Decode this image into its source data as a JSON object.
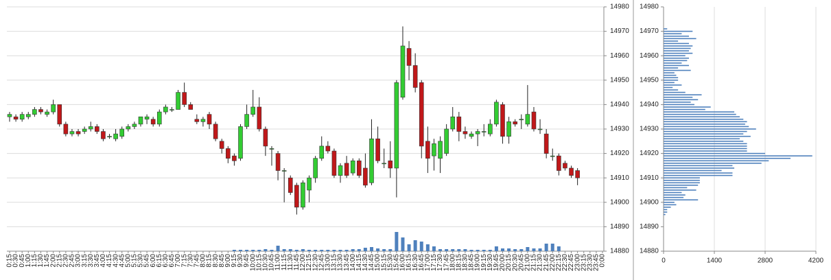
{
  "chart_data": [
    {
      "type": "candlestick",
      "categories": [
        "0:15",
        "0:30",
        "0:45",
        "1:00",
        "1:15",
        "1:30",
        "1:45",
        "2:00",
        "2:15",
        "2:30",
        "2:45",
        "3:00",
        "3:15",
        "3:30",
        "3:45",
        "4:00",
        "4:15",
        "4:30",
        "4:45",
        "5:00",
        "5:15",
        "5:30",
        "5:45",
        "6:00",
        "6:15",
        "6:30",
        "6:45",
        "7:00",
        "7:15",
        "7:30",
        "7:45",
        "8:00",
        "8:15",
        "8:30",
        "8:45",
        "9:00",
        "9:15",
        "9:30",
        "9:45",
        "10:00",
        "10:15",
        "10:30",
        "10:45",
        "11:00",
        "11:15",
        "11:30",
        "11:45",
        "12:00",
        "12:15",
        "12:30",
        "12:45",
        "13:00",
        "13:15",
        "13:30",
        "13:45",
        "14:00",
        "14:15",
        "14:30",
        "14:45",
        "15:00",
        "15:15",
        "15:30",
        "15:45",
        "16:00",
        "16:15",
        "16:30",
        "16:45",
        "17:00",
        "17:15",
        "17:30",
        "17:45",
        "18:00",
        "18:15",
        "18:30",
        "18:45",
        "19:00",
        "19:15",
        "19:30",
        "19:45",
        "20:00",
        "20:15",
        "20:30",
        "20:45",
        "21:00",
        "21:15",
        "21:30",
        "21:45",
        "22:00",
        "22:15",
        "22:30",
        "22:45",
        "23:00",
        "23:15",
        "23:30",
        "23:45",
        "0:00"
      ],
      "open": [
        14935,
        14935,
        14934,
        14935,
        14936,
        14938,
        14936,
        14937,
        14940,
        14932,
        14928,
        14929,
        14929,
        14930,
        14931,
        14929,
        14927,
        14926,
        14927,
        14930,
        14931,
        14932,
        14934,
        14934,
        14932,
        14937,
        14938,
        14938,
        14945,
        14940,
        14934,
        14933,
        14936,
        14932,
        14925,
        14922,
        14919,
        14918,
        14931,
        14936,
        14939,
        14930,
        14922,
        14920,
        14913,
        14910,
        14907,
        14898,
        14905,
        14910,
        14918,
        14923,
        14921,
        14911,
        14916,
        14912,
        14917,
        14914,
        14908,
        14926,
        14916,
        14917,
        14914,
        14943,
        14963,
        14956,
        14949,
        14925,
        14919,
        14918,
        14920,
        14930,
        14935,
        14929,
        14927,
        14928,
        14929,
        14928,
        14932,
        14940,
        14927,
        14933,
        14934,
        14932,
        14937,
        14930,
        14928,
        14919,
        14919,
        14916,
        14914,
        14913,
        null,
        null,
        null,
        null
      ],
      "high": [
        14937,
        14936,
        14937,
        14937,
        14939,
        14939,
        14938,
        14942,
        14940,
        14933,
        14930,
        14930,
        14931,
        14933,
        14932,
        14930,
        14928,
        14930,
        14931,
        14932,
        14933,
        14935,
        14936,
        14935,
        14938,
        14940,
        14939,
        14946,
        14949,
        14941,
        14936,
        14935,
        14937,
        14933,
        14926,
        14923,
        14920,
        14932,
        14940,
        14946,
        14943,
        14931,
        14923,
        14921,
        14914,
        14911,
        14908,
        14909,
        14911,
        14919,
        14927,
        14925,
        14922,
        14916,
        14919,
        14918,
        14918,
        14920,
        14934,
        14931,
        14922,
        14925,
        14950,
        14972,
        14966,
        14961,
        14950,
        14931,
        14926,
        14927,
        14932,
        14939,
        14937,
        14931,
        14929,
        14930,
        14932,
        14934,
        14942,
        14941,
        14935,
        14934,
        14936,
        14948,
        14939,
        14934,
        14930,
        14922,
        14920,
        14917,
        14915,
        14914,
        null,
        null,
        null,
        null
      ],
      "low": [
        14933,
        14933,
        14933,
        14934,
        14935,
        14936,
        14935,
        14936,
        14931,
        14927,
        14927,
        14927,
        14928,
        14929,
        14928,
        14925,
        14926,
        14925,
        14926,
        14929,
        14930,
        14931,
        14932,
        14931,
        14931,
        14936,
        14937,
        14938,
        14939,
        14938,
        14932,
        14931,
        14930,
        14925,
        14920,
        14916,
        14915,
        14917,
        14930,
        14935,
        14929,
        14919,
        14915,
        14909,
        14900,
        14903,
        14895,
        14897,
        14900,
        14908,
        14917,
        14920,
        14910,
        14908,
        14910,
        14911,
        14910,
        14906,
        14907,
        14916,
        14914,
        14910,
        14902,
        14942,
        14950,
        14945,
        14918,
        14912,
        14913,
        14912,
        14919,
        14929,
        14925,
        14926,
        14926,
        14923,
        14927,
        14927,
        14931,
        14924,
        14924,
        14931,
        14930,
        14931,
        14929,
        14928,
        14918,
        14917,
        14911,
        14913,
        14910,
        14907,
        null,
        null,
        null,
        null
      ],
      "close": [
        14936,
        14934,
        14936,
        14936,
        14938,
        14937,
        14937,
        14940,
        14932,
        14928,
        14929,
        14928,
        14930,
        14931,
        14929,
        14926,
        14927,
        14928,
        14930,
        14931,
        14932,
        14935,
        14935,
        14932,
        14937,
        14939,
        14938,
        14945,
        14940,
        14938,
        14933,
        14934,
        14932,
        14926,
        14922,
        14918,
        14917,
        14931,
        14936,
        14939,
        14930,
        14923,
        14922,
        14913,
        14913,
        14904,
        14898,
        14908,
        14910,
        14918,
        14923,
        14921,
        14911,
        14915,
        14911,
        14917,
        14911,
        14907,
        14926,
        14917,
        14916,
        14914,
        14949,
        14964,
        14956,
        14947,
        14923,
        14918,
        14924,
        14925,
        14930,
        14935,
        14929,
        14928,
        14928,
        14929,
        14929,
        14932,
        14941,
        14927,
        14933,
        14932,
        14934,
        14936,
        14930,
        14930,
        14920,
        14919,
        14913,
        14914,
        14911,
        14910,
        null,
        null,
        null,
        null
      ],
      "volume": [
        0,
        0,
        0,
        0,
        0,
        0,
        0,
        0,
        0,
        0,
        0,
        0,
        0,
        0,
        0,
        0,
        0,
        0,
        0,
        0,
        0,
        0,
        0,
        0,
        0,
        0,
        0,
        0,
        0,
        0,
        0,
        0,
        0,
        0,
        0,
        0,
        2,
        2,
        2,
        2,
        2,
        3,
        2,
        8,
        3,
        3,
        2,
        3,
        2,
        2,
        2,
        2,
        2,
        2,
        2,
        3,
        3,
        5,
        6,
        4,
        3,
        3,
        28,
        20,
        10,
        16,
        14,
        10,
        7,
        3,
        3,
        3,
        3,
        3,
        2,
        2,
        2,
        2,
        7,
        4,
        4,
        3,
        3,
        6,
        4,
        4,
        11,
        11,
        7,
        null,
        null,
        null,
        null,
        null,
        null,
        null
      ],
      "ylim": [
        14880,
        14980
      ],
      "yticks": [
        14880,
        14890,
        14900,
        14910,
        14920,
        14930,
        14940,
        14950,
        14960,
        14970,
        14980
      ],
      "grid": true,
      "up_color": "#33cc33",
      "down_color": "#c0181a",
      "volume_color": "#4f81bd"
    },
    {
      "type": "hbar",
      "y": [
        14971,
        14970,
        14969,
        14968,
        14967,
        14966,
        14965,
        14964,
        14963,
        14962,
        14961,
        14960,
        14959,
        14958,
        14957,
        14956,
        14955,
        14954,
        14953,
        14952,
        14951,
        14950,
        14949,
        14948,
        14947,
        14946,
        14945,
        14944,
        14943,
        14942,
        14941,
        14940,
        14939,
        14938,
        14937,
        14936,
        14935,
        14934,
        14933,
        14932,
        14931,
        14930,
        14929,
        14928,
        14927,
        14926,
        14925,
        14924,
        14923,
        14922,
        14921,
        14920,
        14919,
        14918,
        14917,
        14916,
        14915,
        14914,
        14913,
        14912,
        14911,
        14910,
        14909,
        14908,
        14907,
        14906,
        14905,
        14904,
        14903,
        14902,
        14901,
        14900,
        14899,
        14898,
        14897,
        14896,
        14895
      ],
      "values": [
        100,
        800,
        500,
        700,
        900,
        400,
        700,
        800,
        750,
        700,
        800,
        600,
        700,
        650,
        500,
        700,
        400,
        750,
        300,
        350,
        400,
        400,
        300,
        500,
        250,
        400,
        600,
        1050,
        800,
        950,
        750,
        850,
        1300,
        1150,
        1950,
        2000,
        2100,
        2200,
        2300,
        2250,
        2350,
        2550,
        2300,
        2200,
        2400,
        2100,
        2200,
        2300,
        2300,
        2300,
        2300,
        2800,
        4100,
        3500,
        2900,
        2700,
        1900,
        1950,
        1600,
        1900,
        1900,
        1000,
        1000,
        1000,
        950,
        650,
        900,
        500,
        600,
        550,
        950,
        300,
        350,
        200,
        100,
        100,
        50
      ],
      "xlim": [
        0,
        4200
      ],
      "xticks": [
        0,
        1400,
        2800,
        4200
      ],
      "ylim": [
        14880,
        14980
      ],
      "yticks": [
        14880,
        14890,
        14900,
        14910,
        14920,
        14930,
        14940,
        14950,
        14960,
        14970,
        14980
      ],
      "grid": true,
      "color": "#4f81bd"
    }
  ]
}
